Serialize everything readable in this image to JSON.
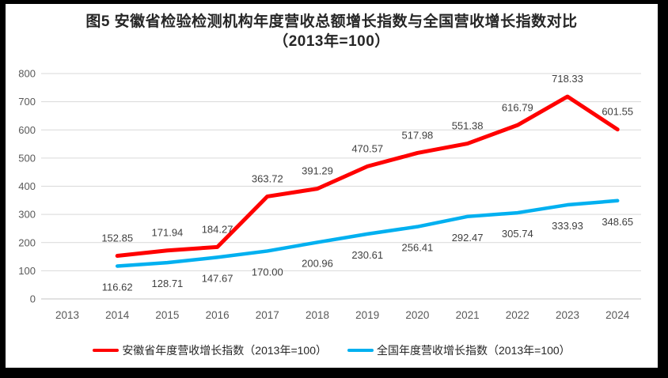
{
  "title": {
    "line1": "图5  安徽省检验检测机构年度营收总额增长指数与全国营收增长指数对比",
    "line2": "（2013年=100）"
  },
  "colors": {
    "anhui_line": "#FF0000",
    "national_line": "#00B0F0",
    "gridline": "#D9D9D9",
    "axis_line": "#C6C6C6",
    "tick_label": "#595959",
    "data_label": "#3F3F3F"
  },
  "chart_data": {
    "type": "line",
    "categories": [
      "2013",
      "2014",
      "2015",
      "2016",
      "2017",
      "2018",
      "2019",
      "2020",
      "2021",
      "2022",
      "2023",
      "2024"
    ],
    "series": [
      {
        "name": "安徽省年度营收增长指数（2013年=100）",
        "color": "#FF0000",
        "values": [
          null,
          152.85,
          171.94,
          184.27,
          363.72,
          391.29,
          470.57,
          517.98,
          551.38,
          616.79,
          718.33,
          601.55
        ]
      },
      {
        "name": "全国年度营收增长指数（2013年=100）",
        "color": "#00B0F0",
        "values": [
          null,
          116.62,
          128.71,
          147.67,
          170.0,
          200.96,
          230.61,
          256.41,
          292.47,
          305.74,
          333.93,
          348.65
        ]
      }
    ],
    "ylim": [
      0,
      800
    ],
    "ytick_step": 100,
    "yticks": [
      "0",
      "100",
      "200",
      "300",
      "400",
      "500",
      "600",
      "700",
      "800"
    ],
    "grid": true,
    "data_labels": true,
    "data_label_decimals": 2,
    "legend_position": "bottom"
  }
}
